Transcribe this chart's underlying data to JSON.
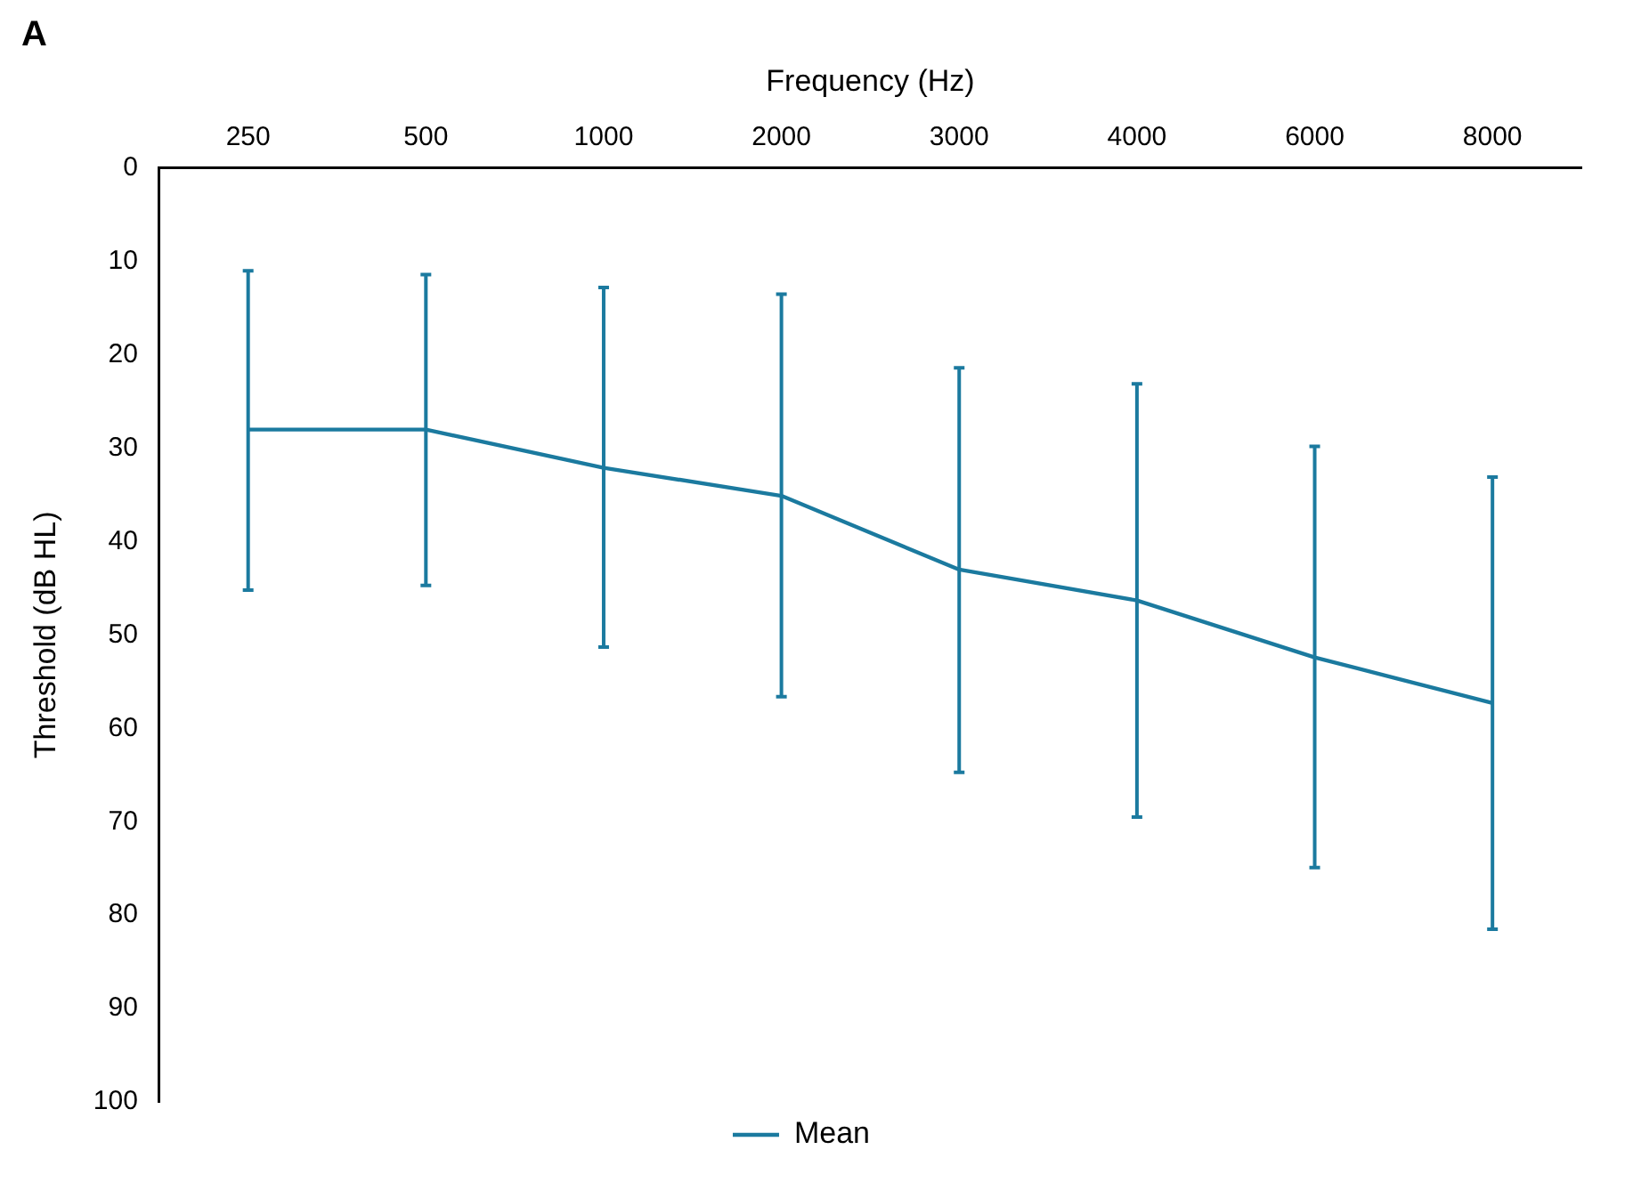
{
  "chart_data": {
    "type": "line",
    "title": "A",
    "xlabel": "Frequency (Hz)",
    "ylabel": "Threshold (dB HL)",
    "categories": [
      "250",
      "500",
      "1000",
      "2000",
      "3000",
      "4000",
      "6000",
      "8000"
    ],
    "series": [
      {
        "name": "Mean",
        "color": "#1b7a9f",
        "values": [
          28.0,
          28.0,
          32.1,
          35.1,
          43.0,
          46.3,
          52.4,
          57.3
        ],
        "errors": [
          [
            11.0,
            45.2
          ],
          [
            11.4,
            44.7
          ],
          [
            12.8,
            51.3
          ],
          [
            13.5,
            56.6
          ],
          [
            21.4,
            64.7
          ],
          [
            23.1,
            69.5
          ],
          [
            29.8,
            74.9
          ],
          [
            33.1,
            81.5
          ]
        ]
      }
    ],
    "ylim": [
      100,
      0
    ],
    "yticks": [
      0,
      10,
      20,
      30,
      40,
      50,
      60,
      70,
      80,
      90,
      100
    ],
    "grid": false,
    "legend": "bottom",
    "marker": "none",
    "line_style": "solid"
  }
}
